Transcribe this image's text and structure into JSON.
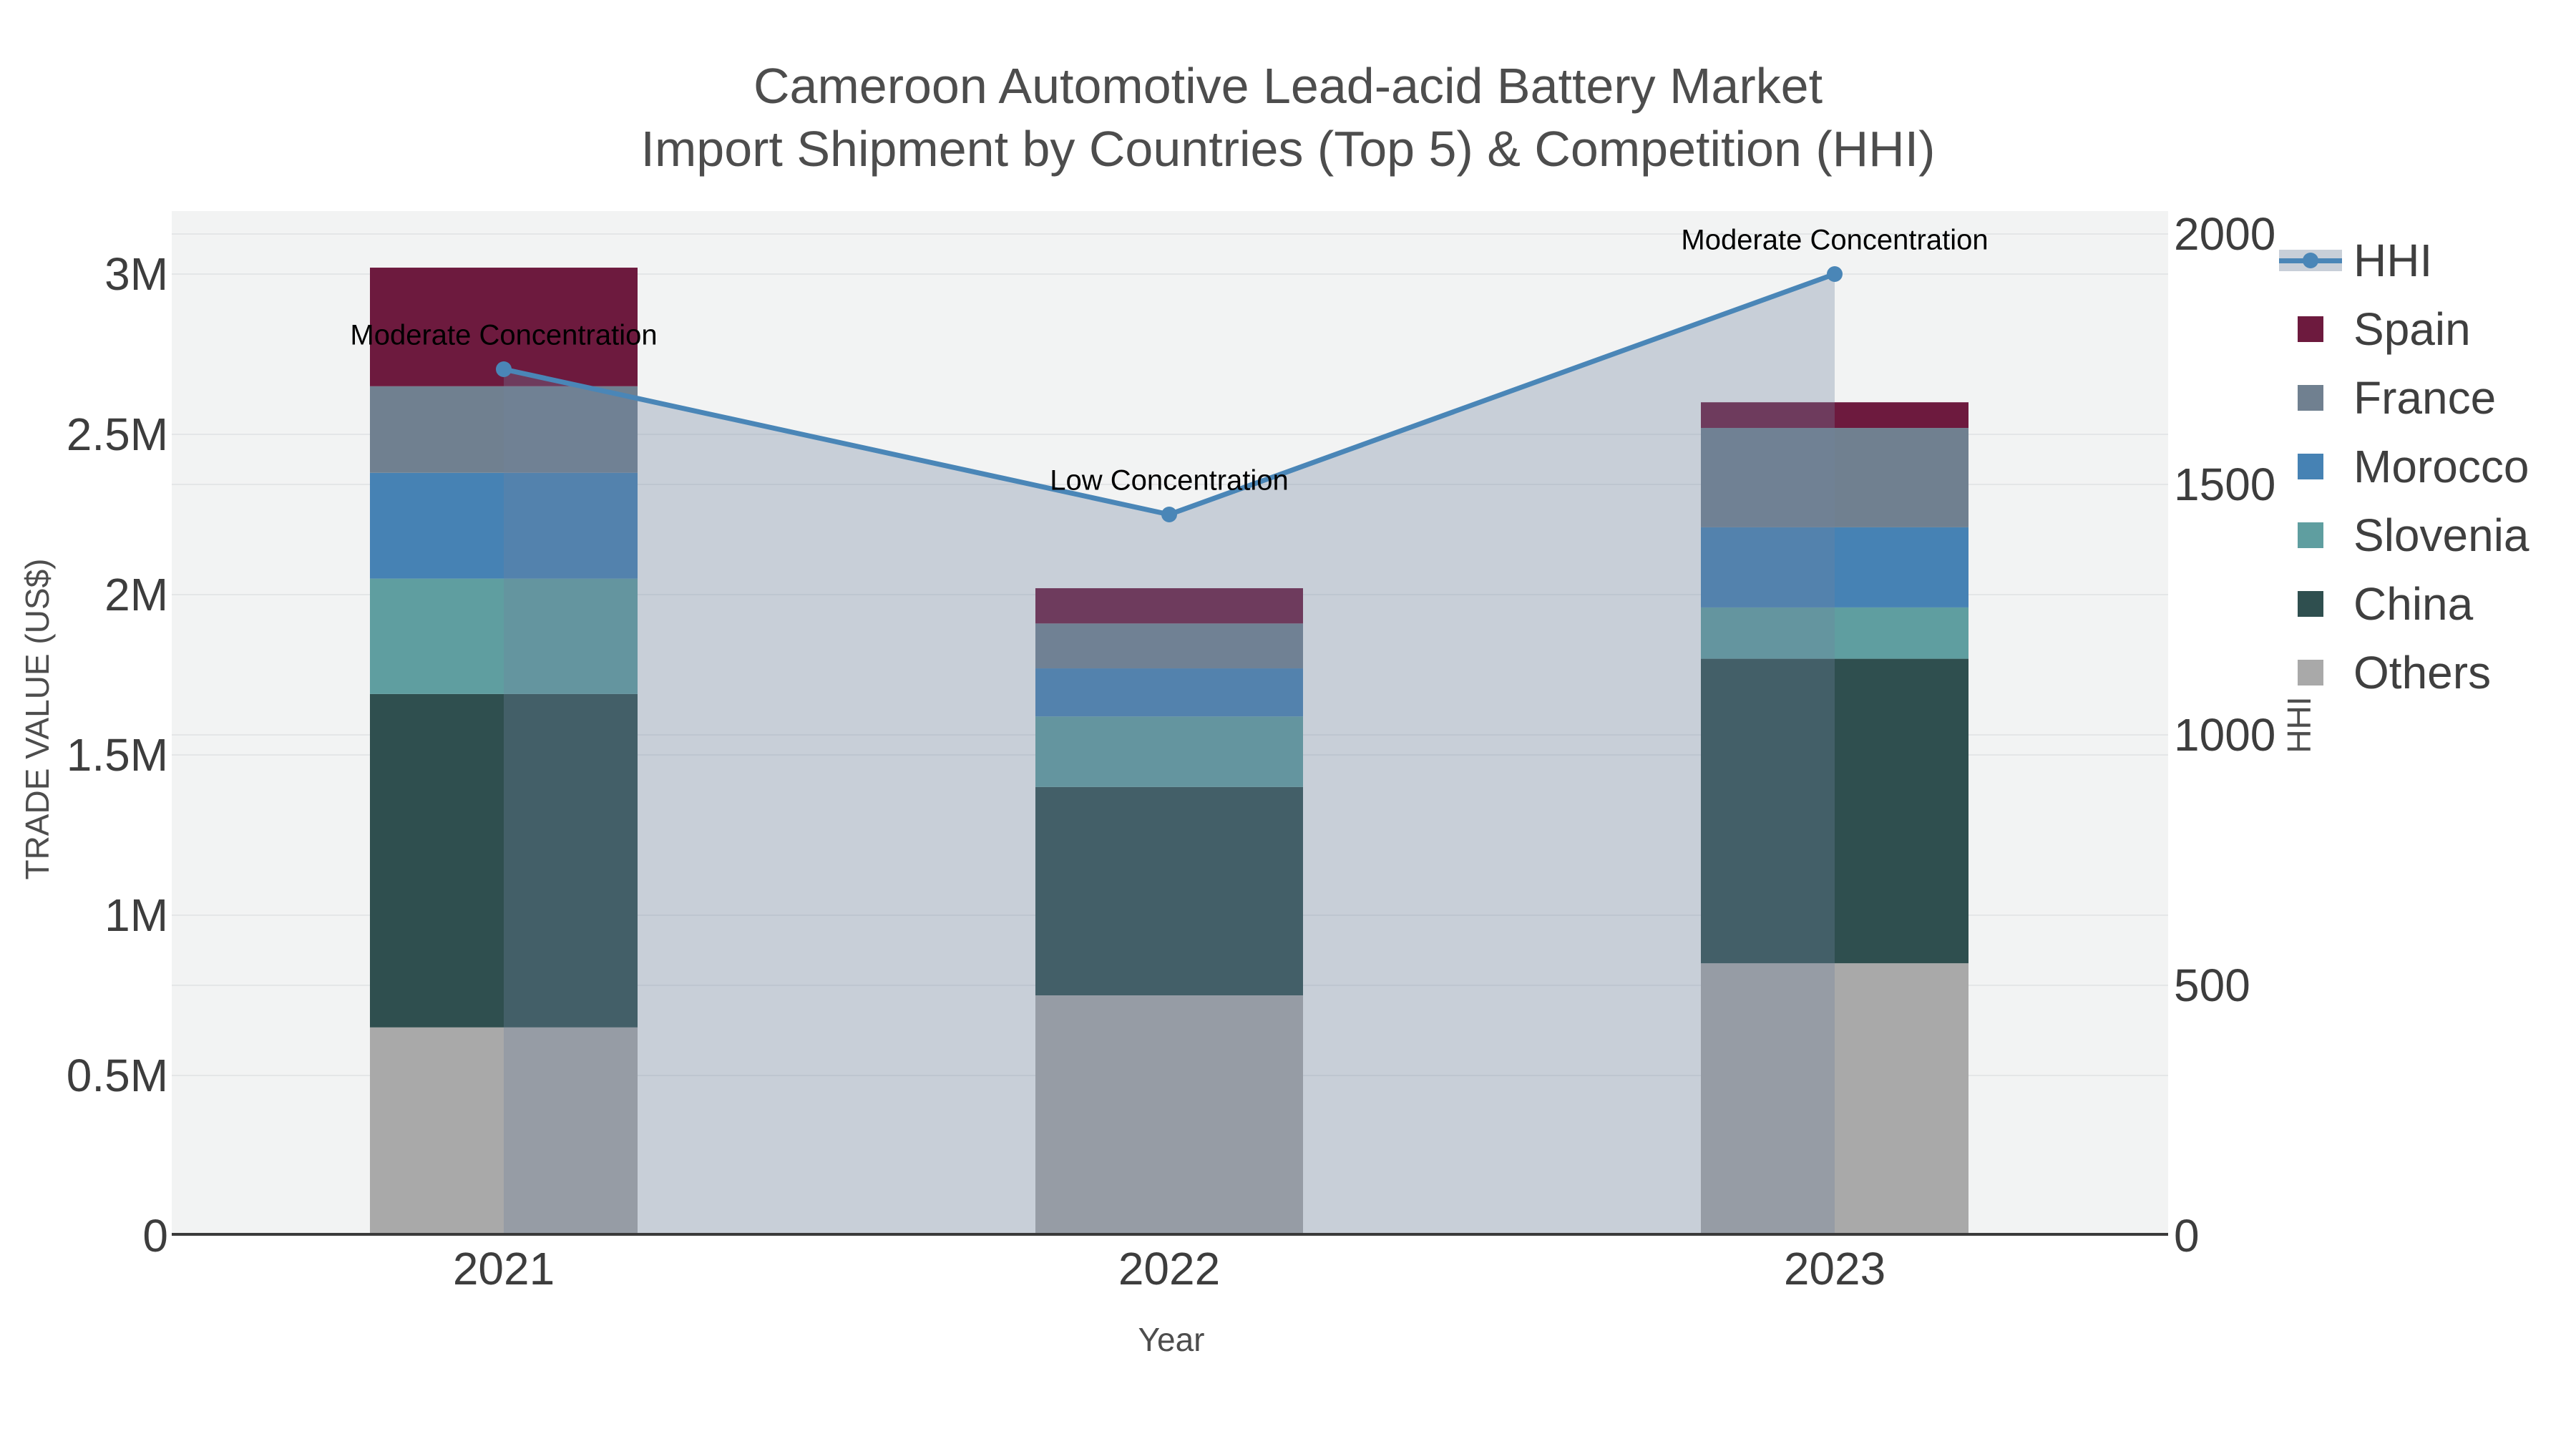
{
  "title": {
    "line1": "Cameroon Automotive Lead-acid Battery Market",
    "line2": "Import Shipment by Countries (Top 5) & Competition (HHI)"
  },
  "axes": {
    "x": {
      "label": "Year",
      "categories": [
        "2021",
        "2022",
        "2023"
      ]
    },
    "y_left": {
      "label": "TRADE VALUE (US$)",
      "tick_labels": [
        "0",
        "0.5M",
        "1M",
        "1.5M",
        "2M",
        "2.5M",
        "3M"
      ],
      "tick_values_musd": [
        0,
        0.5,
        1,
        1.5,
        2,
        2.5,
        3
      ],
      "range_musd": [
        0,
        3.2
      ]
    },
    "y_right": {
      "label": "HHI",
      "tick_labels": [
        "0",
        "500",
        "1000",
        "1500",
        "2000"
      ],
      "tick_values": [
        0,
        500,
        1000,
        1500,
        2000
      ],
      "range": [
        0,
        2045
      ]
    }
  },
  "legend": [
    {
      "label": "HHI",
      "type": "line",
      "color": "#4a86b7"
    },
    {
      "label": "Spain",
      "type": "swatch",
      "color": "#6d1a3e"
    },
    {
      "label": "France",
      "type": "swatch",
      "color": "#708090"
    },
    {
      "label": "Morocco",
      "type": "swatch",
      "color": "#4682b4"
    },
    {
      "label": "Slovenia",
      "type": "swatch",
      "color": "#5f9ea0"
    },
    {
      "label": "China",
      "type": "swatch",
      "color": "#2f4f4f"
    },
    {
      "label": "Others",
      "type": "swatch",
      "color": "#a9a9a9"
    }
  ],
  "chart_data": {
    "type": "bar",
    "subtype": "stacked bars with dual-axis line overlay",
    "categories": [
      "2021",
      "2022",
      "2023"
    ],
    "bar_unit": "M US$",
    "series": [
      {
        "name": "Spain",
        "color": "#6d1a3e",
        "values": [
          0.37,
          0.11,
          0.08
        ]
      },
      {
        "name": "France",
        "color": "#708090",
        "values": [
          0.27,
          0.14,
          0.31
        ]
      },
      {
        "name": "Morocco",
        "color": "#4682b4",
        "values": [
          0.33,
          0.15,
          0.25
        ]
      },
      {
        "name": "Slovenia",
        "color": "#5f9ea0",
        "values": [
          0.36,
          0.22,
          0.16
        ]
      },
      {
        "name": "China",
        "color": "#2f4f4f",
        "values": [
          1.04,
          0.65,
          0.95
        ]
      },
      {
        "name": "Others",
        "color": "#a9a9a9",
        "values": [
          0.65,
          0.75,
          0.85
        ]
      }
    ],
    "stack_order_bottom_to_top": [
      "Others",
      "China",
      "Slovenia",
      "Morocco",
      "France",
      "Spain"
    ],
    "totals_musd": [
      3.02,
      2.02,
      2.6
    ],
    "line_series": {
      "name": "HHI",
      "axis": "y_right",
      "color": "#4a86b7",
      "area_fill": "rgba(111,131,159,0.32)",
      "values": [
        1730,
        1440,
        1920
      ]
    },
    "annotations": [
      {
        "category": "2021",
        "text": "Moderate Concentration"
      },
      {
        "category": "2022",
        "text": "Low Concentration"
      },
      {
        "category": "2023",
        "text": "Moderate Concentration"
      }
    ],
    "grid": true,
    "legend_position": "right",
    "plot_background": "#f2f3f3",
    "grid_color": "#e4e6e7",
    "axis_line_color": "#3a3a3a"
  }
}
